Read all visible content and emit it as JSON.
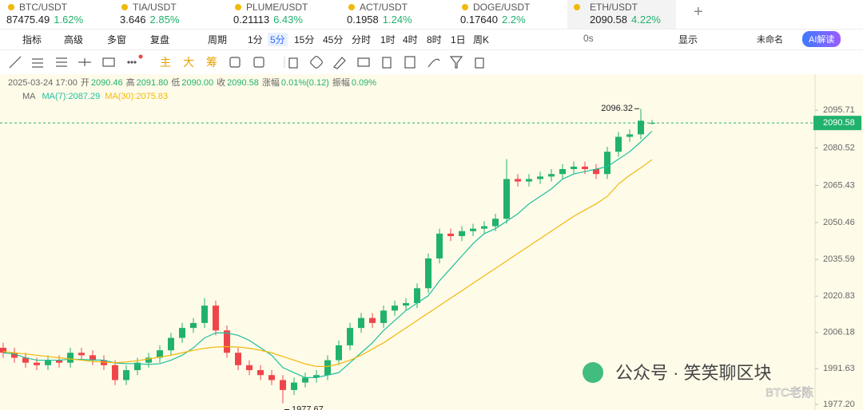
{
  "tabs": [
    {
      "symbol": "BTC/USDT",
      "price": "87475.49",
      "change": "1.62%"
    },
    {
      "symbol": "TIA/USDT",
      "price": "3.646",
      "change": "2.85%"
    },
    {
      "symbol": "PLUME/USDT",
      "price": "0.21113",
      "change": "6.43%"
    },
    {
      "symbol": "ACT/USDT",
      "price": "0.1958",
      "change": "1.24%"
    },
    {
      "symbol": "DOGE/USDT",
      "price": "0.17640",
      "change": "2.2%"
    },
    {
      "symbol": "ETH/USDT",
      "price": "2090.58",
      "change": "4.22%"
    }
  ],
  "toolbar": {
    "left": [
      "指标",
      "高级",
      "多窗",
      "复盘"
    ],
    "period": "周期",
    "intervals": [
      "1分",
      "5分",
      "15分",
      "45分",
      "分时",
      "1时",
      "4时",
      "8时",
      "1日",
      "周K"
    ],
    "timer": "0s",
    "display": "显示",
    "workspace": "未命名",
    "ai": "AI解读"
  },
  "drawing_toolbar": [
    "主",
    "大",
    "筹"
  ],
  "info": {
    "datetime": "2025-03-24 17:00",
    "fields": [
      {
        "label": "开",
        "value": "2090.46"
      },
      {
        "label": "高",
        "value": "2091.80"
      },
      {
        "label": "低",
        "value": "2090.00"
      },
      {
        "label": "收",
        "value": "2090.58"
      },
      {
        "label": "涨幅",
        "value": "0.01%(0.12)"
      },
      {
        "label": "振幅",
        "value": "0.09%"
      }
    ],
    "indicator": "MA"
  },
  "chart_data": {
    "type": "candlestick",
    "up_color": "#20b26c",
    "down_color": "#ef454a",
    "ylim": [
      1974.94,
      2110.24
    ],
    "yticks": [
      2095.71,
      2080.52,
      2065.43,
      2050.46,
      2035.59,
      2020.83,
      2006.18,
      1991.63,
      {
        "value": 1977.2,
        "label": "1977.20"
      }
    ],
    "open": [
      2000,
      1998,
      1996,
      1994,
      1993,
      1995,
      1994,
      1998,
      1997,
      1995,
      1993,
      1987,
      1991,
      1994,
      1996,
      1999,
      2004,
      2008,
      2010,
      2017,
      2007,
      1998,
      1993,
      1991,
      1989,
      1987,
      1983,
      1986,
      1988,
      1989,
      1995,
      2001,
      2008,
      2012,
      2010,
      2015,
      2017,
      2018,
      2024,
      2036,
      2046,
      2045,
      2047,
      2048,
      2049,
      2052,
      2068,
      2067,
      2068,
      2069,
      2070,
      2072,
      2073,
      2072,
      2070,
      2079,
      2085,
      2086,
      2090.46
    ],
    "high": [
      2002,
      2000,
      1998,
      1996,
      1997,
      1997,
      2000,
      2000,
      1999,
      1997,
      1995,
      1993,
      1996,
      1998,
      2001,
      2006,
      2010,
      2012,
      2020,
      2019,
      2009,
      2000,
      1995,
      1993,
      1991,
      1989,
      1988,
      1990,
      1991,
      1997,
      2003,
      2010,
      2014,
      2014,
      2017,
      2019,
      2020,
      2026,
      2038,
      2048,
      2048,
      2049,
      2050,
      2051,
      2054,
      2076,
      2070,
      2070,
      2071,
      2072,
      2074,
      2075,
      2075,
      2074,
      2081,
      2087,
      2088,
      2096.32,
      2091.8
    ],
    "low": [
      1996,
      1994,
      1992,
      1991,
      1991,
      1992,
      1992,
      1995,
      1993,
      1991,
      1985,
      1985,
      1989,
      1992,
      1994,
      1997,
      2002,
      2006,
      2008,
      2005,
      1996,
      1991,
      1989,
      1987,
      1985,
      1977.67,
      1981,
      1984,
      1986,
      1987,
      1993,
      1999,
      2006,
      2008,
      2008,
      2013,
      2015,
      2016,
      2022,
      2034,
      2043,
      2043,
      2045,
      2046,
      2047,
      2050,
      2065,
      2065,
      2066,
      2067,
      2068,
      2070,
      2070,
      2068,
      2068,
      2077,
      2083,
      2084,
      2090
    ],
    "close": [
      1998,
      1996,
      1994,
      1993,
      1995,
      1994,
      1998,
      1997,
      1995,
      1993,
      1987,
      1991,
      1994,
      1996,
      1999,
      2004,
      2008,
      2010,
      2017,
      2007,
      1998,
      1993,
      1991,
      1989,
      1987,
      1983,
      1986,
      1988,
      1989,
      1995,
      2001,
      2008,
      2012,
      2010,
      2015,
      2017,
      2018,
      2024,
      2036,
      2046,
      2045,
      2047,
      2048,
      2049,
      2052,
      2068,
      2067,
      2068,
      2069,
      2070,
      2072,
      2073,
      2072,
      2070,
      2079,
      2085,
      2086,
      2091.5,
      2090.58
    ],
    "series": [
      {
        "name": "MA(7):",
        "color": "#1fbf9f",
        "values": [
          1998,
          1997.5,
          1996,
          1995,
          1995,
          1995,
          1995.4,
          1995.3,
          1995.1,
          1995,
          1993.9,
          1993.6,
          1993.6,
          1993.3,
          1993.6,
          1995,
          1997,
          2000,
          2004,
          2006,
          2006,
          2005,
          2003,
          2000,
          1997,
          1992,
          1990,
          1988,
          1988,
          1989,
          1990,
          1994,
          1998,
          2002,
          2007,
          2011,
          2015,
          2018,
          2021,
          2027,
          2032,
          2037,
          2042,
          2046,
          2048,
          2051,
          2054,
          2058,
          2061,
          2064,
          2068,
          2070,
          2071,
          2072,
          2073,
          2076,
          2079,
          2083,
          2087.29
        ]
      },
      {
        "name": "MA(30):",
        "color": "#f0b90b",
        "values": [
          1998.5,
          1998,
          1997.5,
          1997,
          1996.5,
          1996,
          1995.5,
          1995,
          1994.5,
          1994.2,
          1994,
          1994.3,
          1994.8,
          1995.5,
          1996.3,
          1997,
          1998,
          1999,
          1999.8,
          2000.3,
          2000.5,
          2000.3,
          1999.8,
          1999,
          1998,
          1996.5,
          1995,
          1993.5,
          1992.5,
          1992.5,
          1993.5,
          1995,
          1997,
          1999.5,
          2002,
          2005,
          2008,
          2011,
          2014,
          2017,
          2020,
          2023,
          2026,
          2029,
          2032,
          2035,
          2038,
          2041,
          2044,
          2047,
          2050,
          2053,
          2055.5,
          2058,
          2061,
          2066,
          2069.5,
          2072.5,
          2075.83
        ]
      }
    ]
  },
  "watermark": {
    "text": "公众号 · 笑笑聊区块",
    "author": "BTC老陈"
  }
}
